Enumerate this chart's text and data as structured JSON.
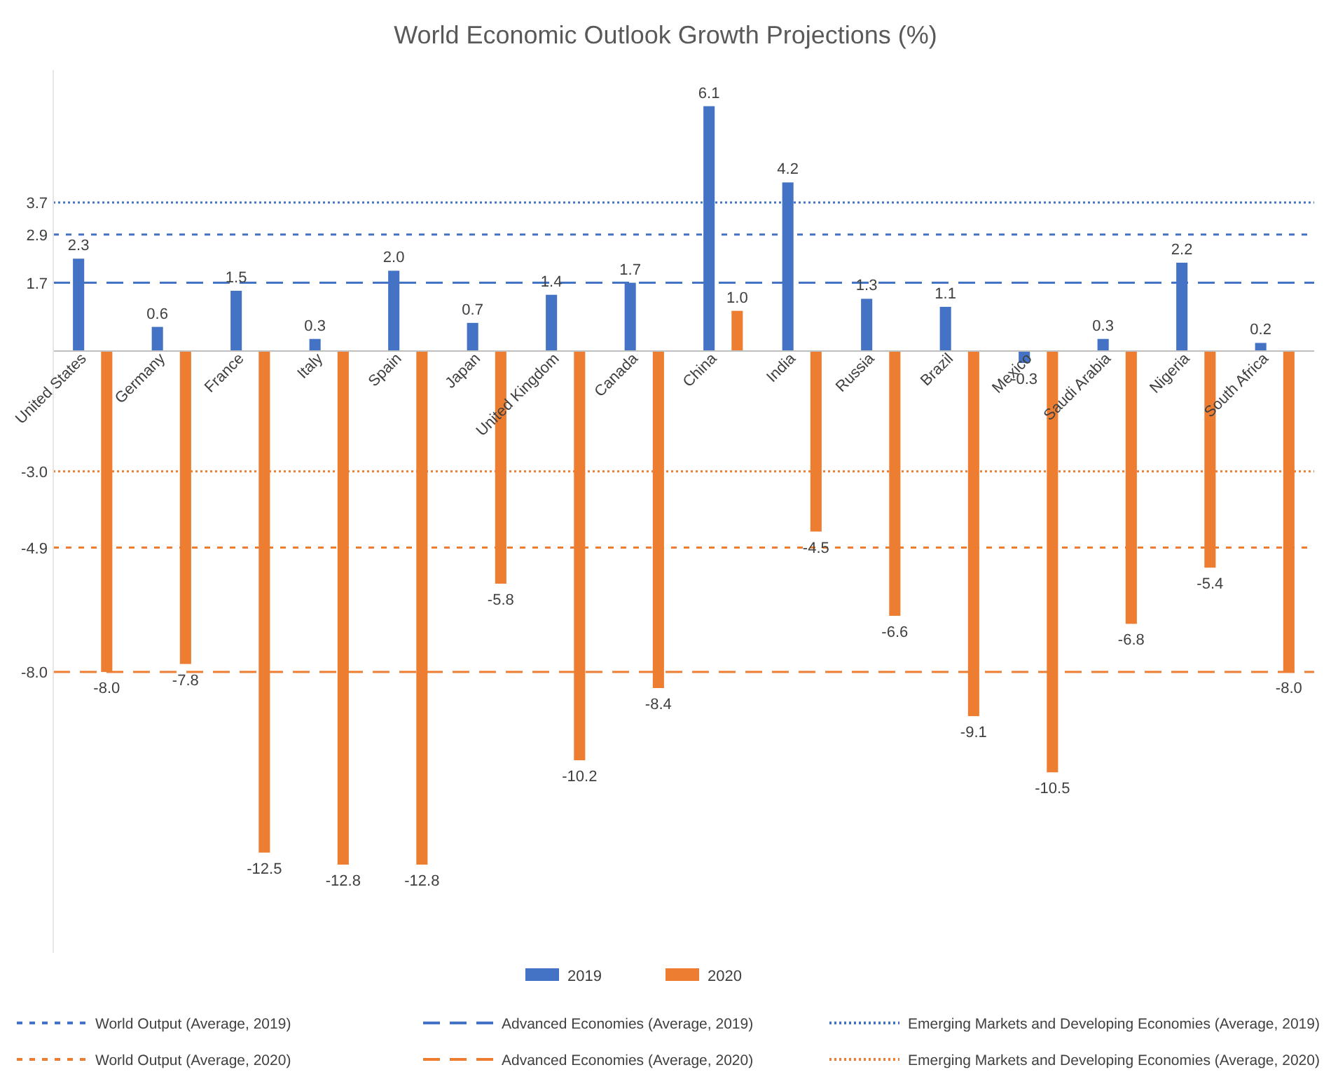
{
  "chart_data": {
    "type": "bar",
    "title": "World Economic Outlook Growth Projections (%)",
    "categories": [
      "United States",
      "Germany",
      "France",
      "Italy",
      "Spain",
      "Japan",
      "United Kingdom",
      "Canada",
      "China",
      "India",
      "Russia",
      "Brazil",
      "Mexico",
      "Saudi Arabia",
      "Nigeria",
      "South Africa"
    ],
    "series": [
      {
        "name": "2019",
        "color": "#4472c4",
        "values": [
          2.3,
          0.6,
          1.5,
          0.3,
          2.0,
          0.7,
          1.4,
          1.7,
          6.1,
          4.2,
          1.3,
          1.1,
          -0.3,
          0.3,
          2.2,
          0.2
        ],
        "value_labels": [
          "2.3",
          "0.6",
          "1.5",
          "0.3",
          "2.0",
          "0.7",
          "1.4",
          "1.7",
          "6.1",
          "4.2",
          "1.3",
          "1.1",
          "-0.3",
          "0.3",
          "2.2",
          "0.2"
        ]
      },
      {
        "name": "2020",
        "color": "#ed7d31",
        "values": [
          -8.0,
          -7.8,
          -12.5,
          -12.8,
          -12.8,
          -5.8,
          -10.2,
          -8.4,
          1.0,
          -4.5,
          -6.6,
          -9.1,
          -10.5,
          -6.8,
          -5.4,
          -8.0
        ],
        "value_labels": [
          "-8.0",
          "-7.8",
          "-12.5",
          "-12.8",
          "-12.8",
          "-5.8",
          "-10.2",
          "-8.4",
          "1.0",
          "-4.5",
          "-6.6",
          "-9.1",
          "-10.5",
          "-6.8",
          "-5.4",
          "-8.0"
        ]
      }
    ],
    "ylim": [
      -15,
      7
    ],
    "yticks": [
      {
        "value": -8.0,
        "label": "-8.0"
      },
      {
        "value": -4.9,
        "label": "-4.9"
      },
      {
        "value": -3.0,
        "label": "-3.0"
      },
      1.7,
      2.9,
      3.7
    ],
    "ref_lines": [
      {
        "axis": "y",
        "value": 2.9,
        "label": "World Output (Average, 2019)",
        "color": "#4472c4",
        "line_style": "dashed"
      },
      {
        "axis": "y",
        "value": 1.7,
        "label": "Advanced Economies (Average, 2019)",
        "color": "#4472c4",
        "line_style": "dashed"
      },
      {
        "axis": "y",
        "value": 3.7,
        "label": "Emerging Markets and Developing Economies (Average, 2019)",
        "color": "#4472c4",
        "line_style": "dotted"
      },
      {
        "axis": "y",
        "value": -4.9,
        "label": "World Output (Average, 2020)",
        "color": "#ed7d31",
        "line_style": "dashed"
      },
      {
        "axis": "y",
        "value": -8.0,
        "label": "Advanced Economies (Average, 2020)",
        "color": "#ed7d31",
        "line_style": "dashed"
      },
      {
        "axis": "y",
        "value": -3.0,
        "label": "Emerging Markets and Developing Economies (Average, 2020)",
        "color": "#ed7d31",
        "line_style": "dotted"
      }
    ],
    "grid": false,
    "legend": "bottom"
  }
}
